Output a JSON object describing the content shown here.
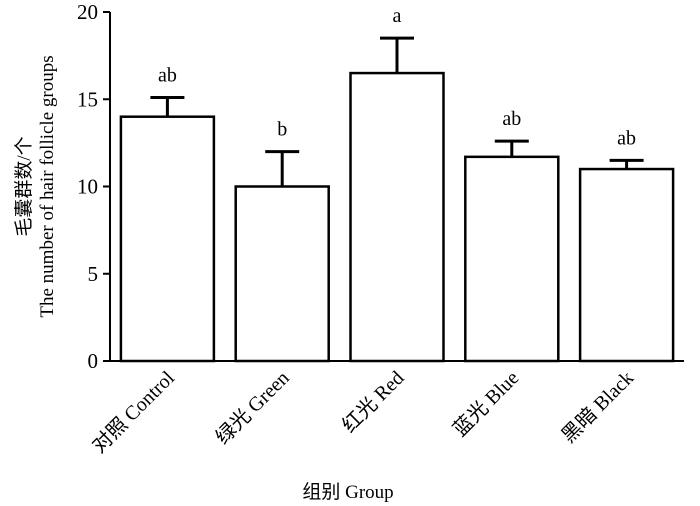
{
  "chart_data": {
    "type": "bar",
    "categories": [
      "对照 Control",
      "绿光 Green",
      "红光 Red",
      "蓝光 Blue",
      "黑暗 Black"
    ],
    "values": [
      14.0,
      10.0,
      16.5,
      11.7,
      11.0
    ],
    "errors": [
      1.1,
      2.0,
      2.0,
      0.9,
      0.5
    ],
    "significance": [
      "ab",
      "b",
      "a",
      "ab",
      "ab"
    ],
    "xlabel": "组别 Group",
    "ylabel_line1": "毛囊群数/个",
    "ylabel_line2": "The number of hair follicle groups",
    "ylim": [
      0,
      20
    ],
    "yticks": [
      0,
      5,
      10,
      15,
      20
    ],
    "bar_fill": "#ffffff",
    "bar_stroke": "#000000"
  }
}
